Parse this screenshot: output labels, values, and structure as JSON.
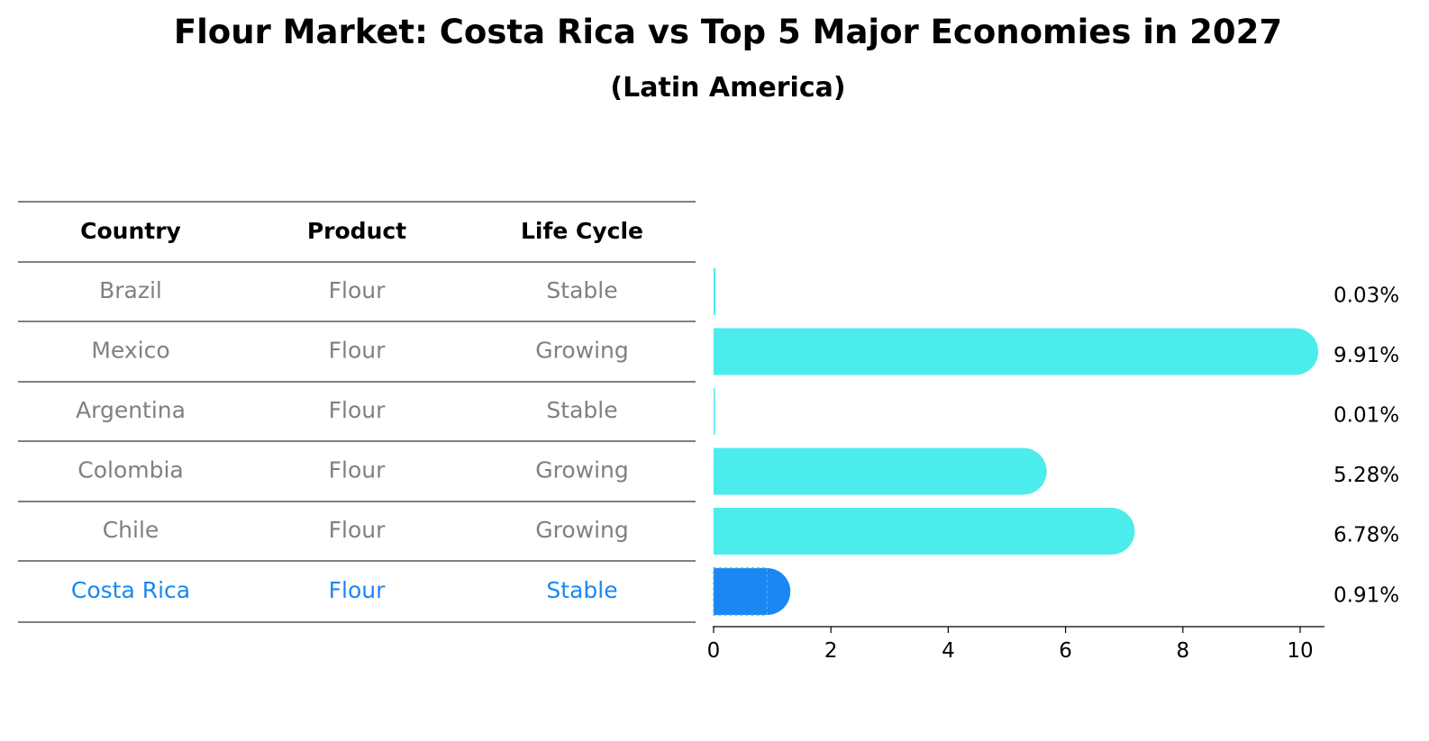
{
  "chart_data": {
    "type": "bar",
    "title": "Flour Market: Costa Rica vs Top 5 Major Economies in 2027",
    "subtitle": "(Latin America)",
    "table": {
      "columns": [
        "Country",
        "Product",
        "Life Cycle"
      ],
      "rows": [
        [
          "Brazil",
          "Flour",
          "Stable"
        ],
        [
          "Mexico",
          "Flour",
          "Growing"
        ],
        [
          "Argentina",
          "Flour",
          "Stable"
        ],
        [
          "Colombia",
          "Flour",
          "Growing"
        ],
        [
          "Chile",
          "Flour",
          "Growing"
        ],
        [
          "Costa Rica",
          "Flour",
          "Stable"
        ]
      ]
    },
    "categories": [
      "Brazil",
      "Mexico",
      "Argentina",
      "Colombia",
      "Chile",
      "Costa Rica"
    ],
    "values": [
      0.03,
      9.91,
      0.01,
      5.28,
      6.78,
      0.91
    ],
    "value_labels": [
      "0.03%",
      "9.91%",
      "0.01%",
      "5.28%",
      "6.78%",
      "0.91%"
    ],
    "xlim": [
      0,
      10.4
    ],
    "xticks": [
      0,
      2,
      4,
      6,
      8,
      10
    ],
    "highlight": "Costa Rica",
    "colors": {
      "bar": "#4beceb",
      "highlight_bar": "#1a87f2",
      "row_text": "#808080",
      "highlight_text": "#1a87f2"
    }
  }
}
